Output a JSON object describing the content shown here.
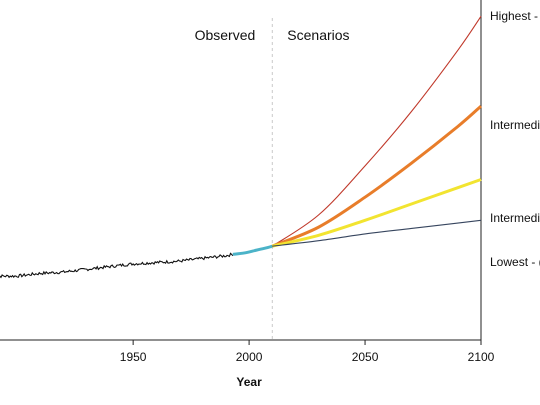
{
  "chart_data": {
    "type": "line",
    "title": "",
    "xlabel": "Year",
    "ylabel": "",
    "xlim": [
      1890,
      2100
    ],
    "ylim": [
      -0.5,
      2.0
    ],
    "x_ticks": [
      1950,
      2000,
      2050,
      2100
    ],
    "grid": false,
    "legend": "right-end labels",
    "divider_year": 2010,
    "period_labels": {
      "observed": "Observed",
      "scenarios": "Scenarios"
    },
    "observed": {
      "x": [
        1890,
        1900,
        1910,
        1920,
        1930,
        1940,
        1950,
        1960,
        1970,
        1980,
        1990,
        1993
      ],
      "y": [
        -0.03,
        -0.03,
        -0.01,
        0.0,
        0.02,
        0.04,
        0.06,
        0.07,
        0.08,
        0.1,
        0.12,
        0.13
      ]
    },
    "satellite": {
      "x": [
        1993,
        1998,
        2003,
        2008,
        2010
      ],
      "y": [
        0.13,
        0.14,
        0.16,
        0.18,
        0.19
      ],
      "color": "#4bb3c8"
    },
    "series": [
      {
        "name": "Highest - ",
        "color": "#c0392b",
        "x": [
          2010,
          2030,
          2050,
          2070,
          2090,
          2100
        ],
        "y": [
          0.19,
          0.42,
          0.78,
          1.18,
          1.63,
          1.88
        ]
      },
      {
        "name": "Intermedi",
        "color": "#e87d2a",
        "x": [
          2010,
          2030,
          2050,
          2070,
          2090,
          2100
        ],
        "y": [
          0.19,
          0.33,
          0.55,
          0.8,
          1.07,
          1.22
        ]
      },
      {
        "name": "Intermedi",
        "color": "#f2e430",
        "x": [
          2010,
          2030,
          2050,
          2070,
          2090,
          2100
        ],
        "y": [
          0.19,
          0.27,
          0.38,
          0.5,
          0.62,
          0.68
        ]
      },
      {
        "name": "Lowest - (",
        "color": "#36455e",
        "x": [
          2010,
          2030,
          2050,
          2070,
          2090,
          2100
        ],
        "y": [
          0.19,
          0.23,
          0.28,
          0.32,
          0.36,
          0.38
        ]
      }
    ]
  }
}
